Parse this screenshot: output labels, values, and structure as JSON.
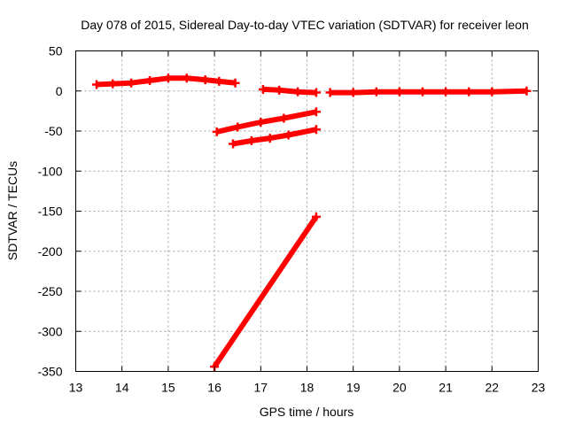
{
  "chart_data": {
    "type": "scatter",
    "title": "Day 078 of 2015, Sidereal Day-to-day VTEC variation (SDTVAR) for receiver leon",
    "xlabel": "GPS time / hours",
    "ylabel": "SDTVAR / TECUs",
    "xlim": [
      13,
      23
    ],
    "ylim": [
      -350,
      50
    ],
    "xticks": [
      13,
      14,
      15,
      16,
      17,
      18,
      19,
      20,
      21,
      22,
      23
    ],
    "yticks": [
      50,
      0,
      -50,
      -100,
      -150,
      -200,
      -250,
      -300,
      -350
    ],
    "grid": true,
    "legend": "none",
    "color": "#ff0000",
    "series": [
      {
        "x": [
          13.45,
          13.8,
          14.2,
          14.6,
          15.0,
          15.4,
          15.8,
          16.1,
          16.45
        ],
        "y": [
          8,
          9,
          10,
          13,
          16,
          16,
          14,
          12,
          10
        ]
      },
      {
        "x": [
          17.05,
          17.4,
          17.8,
          18.2
        ],
        "y": [
          2,
          1,
          -1,
          -2
        ]
      },
      {
        "x": [
          18.5,
          19.0,
          19.5,
          20.0,
          20.5,
          21.0,
          21.5,
          22.0,
          22.75
        ],
        "y": [
          -2,
          -2,
          -1,
          -1,
          -1,
          -1,
          -1,
          -1,
          0
        ]
      },
      {
        "x": [
          16.05,
          16.5,
          17.0,
          17.5,
          18.2
        ],
        "y": [
          -51,
          -45,
          -39,
          -34,
          -26
        ]
      },
      {
        "x": [
          16.4,
          16.8,
          17.2,
          17.6,
          18.2
        ],
        "y": [
          -66,
          -62,
          -59,
          -55,
          -48
        ]
      },
      {
        "x": [
          16.0,
          18.2
        ],
        "y": [
          -344,
          -157
        ]
      }
    ]
  }
}
